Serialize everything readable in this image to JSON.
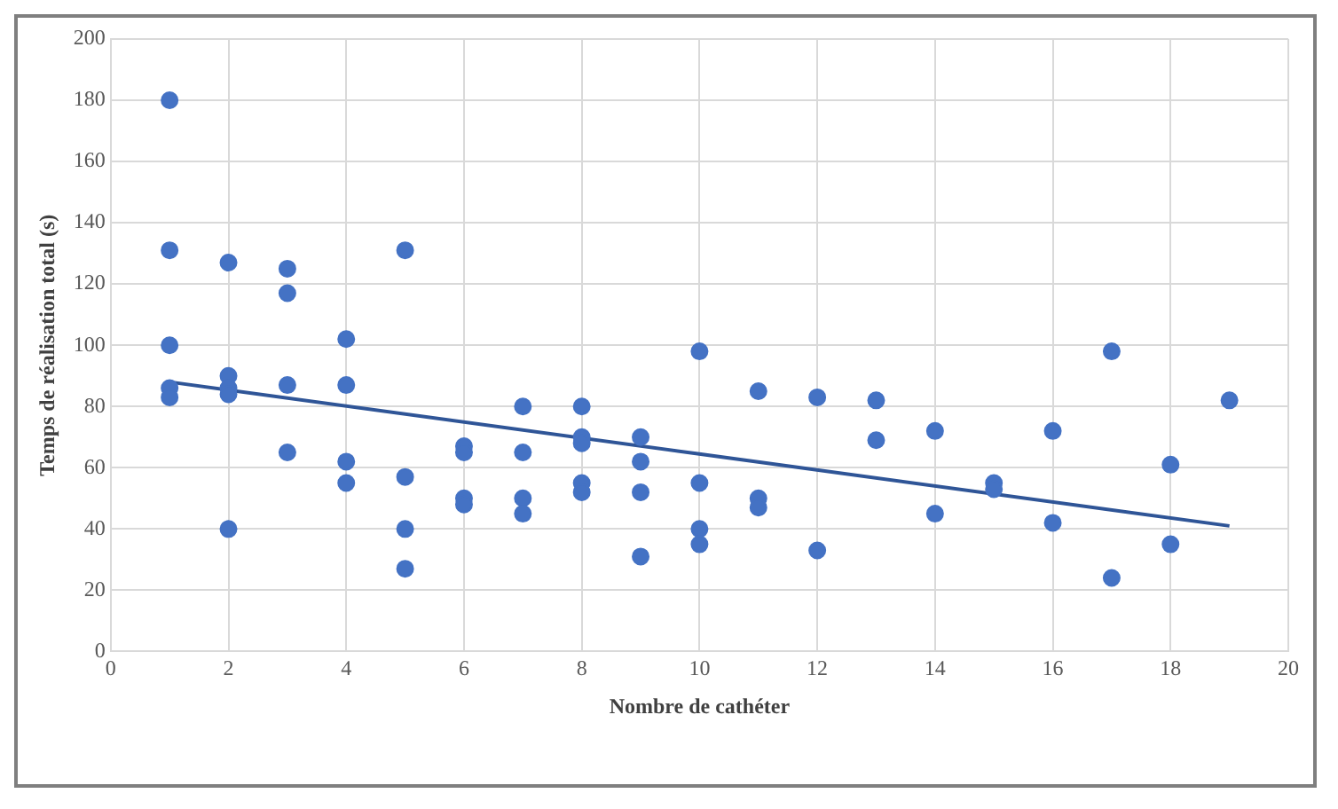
{
  "chart_data": {
    "type": "scatter",
    "xlabel": "Nombre de cathéter",
    "ylabel": "Temps de réalisation total (s)",
    "xlim": [
      0,
      20
    ],
    "xticks": [
      0,
      2,
      4,
      6,
      8,
      10,
      12,
      14,
      16,
      18,
      20
    ],
    "ylim": [
      0,
      200
    ],
    "yticks": [
      0,
      20,
      40,
      60,
      80,
      100,
      120,
      140,
      160,
      180,
      200
    ],
    "grid": true,
    "legend": false,
    "series": [
      {
        "color": "#4472c4",
        "marker": "circle",
        "x": [
          1,
          1,
          1,
          1,
          1,
          2,
          2,
          2,
          2,
          2,
          3,
          3,
          3,
          3,
          4,
          4,
          4,
          4,
          5,
          5,
          5,
          5,
          6,
          6,
          6,
          6,
          7,
          7,
          7,
          7,
          8,
          8,
          8,
          8,
          8,
          9,
          9,
          9,
          9,
          10,
          10,
          10,
          10,
          11,
          11,
          11,
          12,
          12,
          13,
          13,
          14,
          14,
          15,
          15,
          16,
          16,
          17,
          17,
          18,
          18,
          19
        ],
        "values": [
          180,
          131,
          100,
          86,
          83,
          127,
          90,
          86,
          84,
          40,
          125,
          117,
          87,
          65,
          102,
          87,
          62,
          55,
          131,
          57,
          40,
          27,
          67,
          65,
          50,
          48,
          80,
          65,
          50,
          45,
          80,
          70,
          68,
          55,
          52,
          70,
          62,
          52,
          31,
          98,
          55,
          40,
          35,
          85,
          50,
          47,
          83,
          33,
          82,
          69,
          72,
          45,
          55,
          53,
          72,
          42,
          98,
          24,
          61,
          35,
          82
        ]
      },
      {
        "type": "line",
        "color": "#2f5597",
        "x": [
          1,
          19
        ],
        "values": [
          88,
          41
        ]
      }
    ]
  }
}
